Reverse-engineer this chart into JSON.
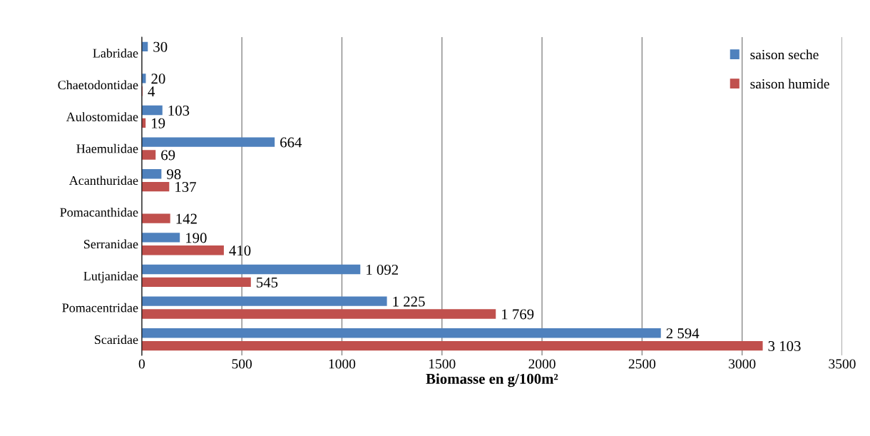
{
  "chart_data": {
    "type": "bar",
    "orientation": "horizontal",
    "xlabel": "Biomasse en g/100m²",
    "categories": [
      "Labridae",
      "Chaetodontidae",
      "Aulostomidae",
      "Haemulidae",
      "Acanthuridae",
      "Pomacanthidae",
      "Serranidae",
      "Lutjanidae",
      "Pomacentridae",
      "Scaridae"
    ],
    "series": [
      {
        "name": "saison seche",
        "color": "#4f81bd",
        "values": [
          30,
          20,
          103,
          664,
          98,
          null,
          190,
          1092,
          1225,
          2594
        ],
        "value_labels": [
          "30",
          "20",
          "103",
          "664",
          "98",
          null,
          "190",
          "1 092",
          "1 225",
          "2 594"
        ]
      },
      {
        "name": "saison humide",
        "color": "#c0504d",
        "values": [
          null,
          4,
          19,
          69,
          137,
          142,
          410,
          545,
          1769,
          3103
        ],
        "value_labels": [
          null,
          "4",
          "19",
          "69",
          "137",
          "142",
          "410",
          "545",
          "1 769",
          "3 103"
        ]
      }
    ],
    "xlim": [
      0,
      3500
    ],
    "xticks": [
      0,
      500,
      1000,
      1500,
      2000,
      2500,
      3000,
      3500
    ],
    "grid": "x",
    "legend": "top right"
  }
}
